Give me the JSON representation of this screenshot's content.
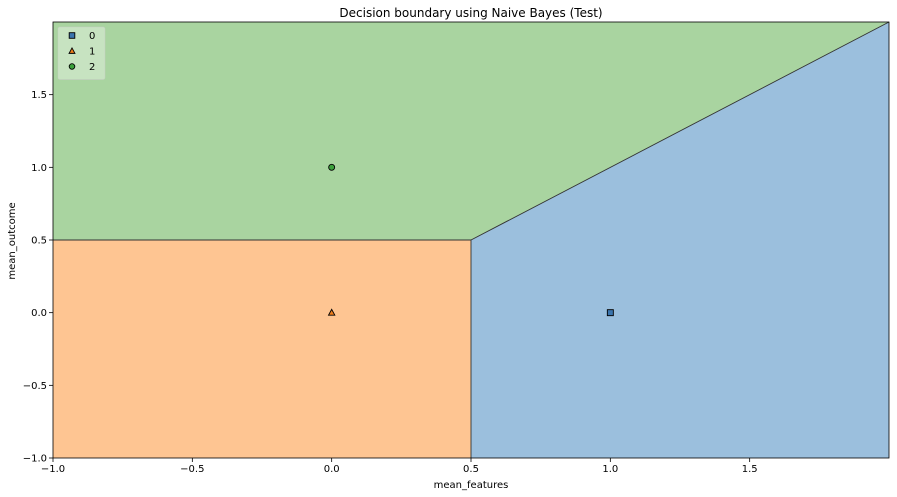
{
  "chart_data": {
    "type": "scatter",
    "title": "Decision boundary using Naive Bayes (Test)",
    "xlabel": "mean_features",
    "ylabel": "mean_outcome",
    "xlim": [
      -1.0,
      2.0
    ],
    "ylim": [
      -1.0,
      2.0
    ],
    "xticks": [
      -1.0,
      -0.5,
      0.0,
      0.5,
      1.0,
      1.5
    ],
    "xtick_labels": [
      "−1.0",
      "−0.5",
      "0.0",
      "0.5",
      "1.0",
      "1.5"
    ],
    "yticks": [
      -1.0,
      -0.5,
      0.0,
      0.5,
      1.0,
      1.5
    ],
    "ytick_labels": [
      "−1.0",
      "−0.5",
      "0.0",
      "0.5",
      "1.0",
      "1.5"
    ],
    "grid": false,
    "legend_position": "top-left",
    "regions": [
      {
        "class": "0",
        "color": "#9bbfdd",
        "polygon": [
          [
            0.5,
            -1.0
          ],
          [
            2.0,
            -1.0
          ],
          [
            2.0,
            2.0
          ],
          [
            0.5,
            0.5
          ]
        ]
      },
      {
        "class": "1",
        "color": "#fec592",
        "polygon": [
          [
            -1.0,
            -1.0
          ],
          [
            0.5,
            -1.0
          ],
          [
            0.5,
            0.5
          ],
          [
            -1.0,
            0.5
          ]
        ]
      },
      {
        "class": "2",
        "color": "#a9d4a0",
        "polygon": [
          [
            -1.0,
            0.5
          ],
          [
            0.5,
            0.5
          ],
          [
            2.0,
            2.0
          ],
          [
            -1.0,
            2.0
          ]
        ]
      }
    ],
    "boundaries": [
      [
        [
          -1.0,
          0.5
        ],
        [
          0.5,
          0.5
        ]
      ],
      [
        [
          0.5,
          -1.0
        ],
        [
          0.5,
          0.5
        ]
      ],
      [
        [
          0.5,
          0.5
        ],
        [
          2.0,
          2.0
        ]
      ]
    ],
    "series": [
      {
        "name": "0",
        "marker": "square",
        "color": "#3a74ad",
        "points": [
          [
            1.0,
            0.0
          ]
        ]
      },
      {
        "name": "1",
        "marker": "triangle",
        "color": "#f07d1a",
        "points": [
          [
            0.0,
            0.0
          ]
        ]
      },
      {
        "name": "2",
        "marker": "circle",
        "color": "#3ba13b",
        "points": [
          [
            0.0,
            1.0
          ]
        ]
      }
    ]
  }
}
